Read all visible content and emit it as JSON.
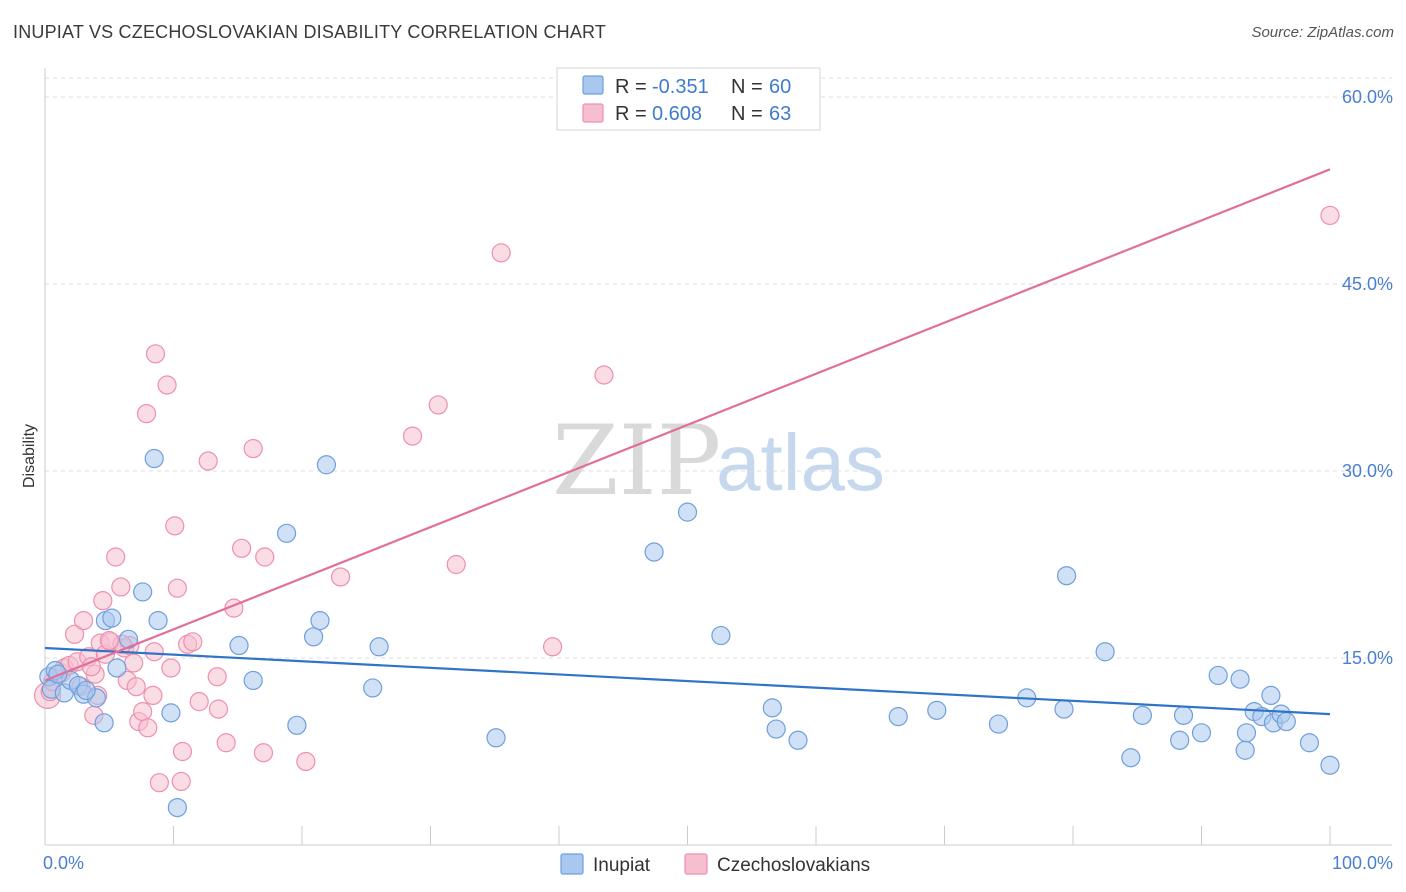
{
  "title": "INUPIAT VS CZECHOSLOVAKIAN DISABILITY CORRELATION CHART",
  "source": "Source: ZipAtlas.com",
  "watermark": {
    "zip": "ZIP",
    "atlas": "atlas"
  },
  "legend_top": [
    {
      "r_label": "R =",
      "r_value": "-0.351",
      "n_label": "N =",
      "n_value": "60"
    },
    {
      "r_label": "R =",
      "r_value": "0.608",
      "n_label": "N =",
      "n_value": "63"
    }
  ],
  "colors": {
    "inupiat_fill": "#a9c8ef",
    "inupiat_stroke": "#6f9fdc",
    "inupiat_line": "#2f74c8",
    "czech_fill": "#f6bfd0",
    "czech_stroke": "#ee8fae",
    "czech_line": "#e0709a",
    "grid": "#dddddd",
    "tick_label": "#4a7fcf"
  },
  "chart_data": {
    "type": "scatter",
    "title": "INUPIAT VS CZECHOSLOVAKIAN DISABILITY CORRELATION CHART",
    "xlabel": "",
    "ylabel": "Disability",
    "xlim": [
      0,
      100
    ],
    "ylim": [
      0,
      60
    ],
    "x_tick_labels": [
      "0.0%",
      "100.0%"
    ],
    "y_ticks": [
      15,
      30,
      45,
      60
    ],
    "y_tick_labels": [
      "15.0%",
      "30.0%",
      "45.0%",
      "60.0%"
    ],
    "grid": true,
    "legend_position": "top-center",
    "series": [
      {
        "name": "Inupiat",
        "r": -0.351,
        "n": 60,
        "trend": [
          [
            0,
            15.8
          ],
          [
            100,
            10.5
          ]
        ],
        "points": [
          [
            0.3,
            13.5
          ],
          [
            0.5,
            12.5
          ],
          [
            0.8,
            14.0
          ],
          [
            1.5,
            12.2
          ],
          [
            2.0,
            13.2
          ],
          [
            2.6,
            12.8
          ],
          [
            3.0,
            12.1
          ],
          [
            4.0,
            11.8
          ],
          [
            4.6,
            9.8
          ],
          [
            4.7,
            18.0
          ],
          [
            5.2,
            18.2
          ],
          [
            5.6,
            14.2
          ],
          [
            6.5,
            16.5
          ],
          [
            7.6,
            20.3
          ],
          [
            8.5,
            31.0
          ],
          [
            8.8,
            18.0
          ],
          [
            9.8,
            10.6
          ],
          [
            10.3,
            3.0
          ],
          [
            15.1,
            16.0
          ],
          [
            16.2,
            13.2
          ],
          [
            18.8,
            25.0
          ],
          [
            19.6,
            9.6
          ],
          [
            20.9,
            16.7
          ],
          [
            21.4,
            18.0
          ],
          [
            21.9,
            30.5
          ],
          [
            25.5,
            12.6
          ],
          [
            26.0,
            15.9
          ],
          [
            35.1,
            8.6
          ],
          [
            47.4,
            23.5
          ],
          [
            50.0,
            26.7
          ],
          [
            52.6,
            16.8
          ],
          [
            56.6,
            11.0
          ],
          [
            56.9,
            9.3
          ],
          [
            58.6,
            8.4
          ],
          [
            66.4,
            10.3
          ],
          [
            69.4,
            10.8
          ],
          [
            74.2,
            9.7
          ],
          [
            76.4,
            11.8
          ],
          [
            79.3,
            10.9
          ],
          [
            79.5,
            21.6
          ],
          [
            82.5,
            15.5
          ],
          [
            84.5,
            7.0
          ],
          [
            85.4,
            10.4
          ],
          [
            88.3,
            8.4
          ],
          [
            88.6,
            10.4
          ],
          [
            90.0,
            9.0
          ],
          [
            91.3,
            13.6
          ],
          [
            93.0,
            13.3
          ],
          [
            93.4,
            7.6
          ],
          [
            93.5,
            9.0
          ],
          [
            94.1,
            10.7
          ],
          [
            94.7,
            10.3
          ],
          [
            95.4,
            12.0
          ],
          [
            95.6,
            9.8
          ],
          [
            96.2,
            10.5
          ],
          [
            96.6,
            9.9
          ],
          [
            98.4,
            8.2
          ],
          [
            100.0,
            6.4
          ],
          [
            3.2,
            12.4
          ],
          [
            1.0,
            13.7
          ]
        ]
      },
      {
        "name": "Czechoslovakians",
        "r": 0.608,
        "n": 63,
        "trend": [
          [
            0,
            13.2
          ],
          [
            100,
            54.2
          ]
        ],
        "points": [
          [
            0.2,
            12.0
          ],
          [
            0.4,
            12.3
          ],
          [
            0.6,
            13.1
          ],
          [
            1.3,
            13.8
          ],
          [
            1.5,
            14.2
          ],
          [
            1.9,
            14.4
          ],
          [
            2.3,
            16.9
          ],
          [
            2.5,
            14.7
          ],
          [
            2.8,
            12.7
          ],
          [
            3.0,
            18.0
          ],
          [
            3.4,
            15.1
          ],
          [
            3.8,
            10.4
          ],
          [
            3.9,
            13.7
          ],
          [
            4.1,
            12.0
          ],
          [
            4.3,
            16.2
          ],
          [
            4.5,
            19.6
          ],
          [
            4.7,
            15.3
          ],
          [
            5.1,
            16.3
          ],
          [
            5.5,
            23.1
          ],
          [
            5.9,
            20.7
          ],
          [
            6.2,
            15.8
          ],
          [
            6.4,
            13.2
          ],
          [
            6.6,
            16.0
          ],
          [
            6.9,
            14.6
          ],
          [
            7.1,
            12.7
          ],
          [
            7.3,
            9.9
          ],
          [
            7.6,
            10.7
          ],
          [
            7.9,
            34.6
          ],
          [
            8.0,
            9.4
          ],
          [
            8.4,
            12.0
          ],
          [
            8.5,
            15.5
          ],
          [
            8.6,
            39.4
          ],
          [
            8.9,
            5.0
          ],
          [
            9.5,
            36.9
          ],
          [
            9.8,
            14.2
          ],
          [
            10.1,
            25.6
          ],
          [
            10.3,
            20.6
          ],
          [
            10.6,
            5.1
          ],
          [
            10.7,
            7.5
          ],
          [
            11.1,
            16.1
          ],
          [
            11.5,
            16.3
          ],
          [
            12.0,
            11.5
          ],
          [
            12.7,
            30.8
          ],
          [
            13.4,
            13.5
          ],
          [
            13.5,
            10.9
          ],
          [
            14.1,
            8.2
          ],
          [
            14.7,
            19.0
          ],
          [
            15.3,
            23.8
          ],
          [
            16.2,
            31.8
          ],
          [
            17.0,
            7.4
          ],
          [
            17.1,
            23.1
          ],
          [
            20.3,
            6.7
          ],
          [
            23.0,
            21.5
          ],
          [
            28.6,
            32.8
          ],
          [
            30.6,
            35.3
          ],
          [
            32.0,
            22.5
          ],
          [
            35.5,
            47.5
          ],
          [
            39.5,
            15.9
          ],
          [
            43.5,
            37.7
          ],
          [
            100.0,
            50.5
          ],
          [
            6.0,
            16.1
          ],
          [
            3.6,
            14.3
          ],
          [
            5.0,
            16.4
          ]
        ]
      }
    ]
  },
  "bottom_legend": [
    "Inupiat",
    "Czechoslovakians"
  ]
}
